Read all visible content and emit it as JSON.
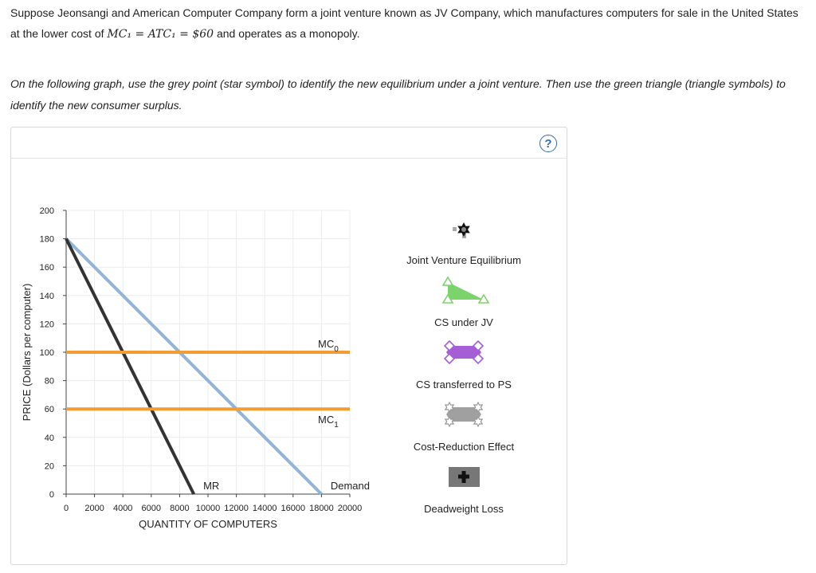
{
  "question": {
    "part1": "Suppose Jeonsangi and American Computer Company form a joint venture known as JV Company, which manufactures computers for sale in the United States at the lower cost of ",
    "math": "MC₁ = ATC₁ = $60",
    "part2": " and operates as a monopoly.",
    "instruction": "On the following graph, use the grey point (star symbol) to identify the new equilibrium under a joint venture. Then use the green triangle (triangle symbols) to identify the new consumer surplus."
  },
  "help": {
    "label": "?"
  },
  "chart_data": {
    "type": "line",
    "xlabel": "QUANTITY OF COMPUTERS",
    "ylabel": "PRICE (Dollars per computer)",
    "xlim": [
      0,
      20000
    ],
    "ylim": [
      0,
      200
    ],
    "x_ticks": [
      0,
      2000,
      4000,
      6000,
      8000,
      10000,
      12000,
      14000,
      16000,
      18000,
      20000
    ],
    "y_ticks": [
      0,
      20,
      40,
      60,
      80,
      100,
      120,
      140,
      160,
      180,
      200
    ],
    "grid": true,
    "series": [
      {
        "name": "Demand",
        "color": "#8fb6d6",
        "points": [
          [
            0,
            180
          ],
          [
            18000,
            0
          ]
        ]
      },
      {
        "name": "MR",
        "color": "#333333",
        "points": [
          [
            0,
            180
          ],
          [
            9000,
            0
          ]
        ]
      },
      {
        "name": "MC0",
        "label_main": "MC",
        "label_sub": "0",
        "color": "#f39c33",
        "points": [
          [
            0,
            100
          ],
          [
            20000,
            100
          ]
        ]
      },
      {
        "name": "MC1",
        "label_main": "MC",
        "label_sub": "1",
        "color": "#f39c33",
        "points": [
          [
            0,
            60
          ],
          [
            20000,
            60
          ]
        ]
      }
    ]
  },
  "palette": {
    "items": [
      {
        "label": "Joint Venture Equilibrium",
        "icon": "star-point-icon",
        "color": "#111111"
      },
      {
        "label": "CS under JV",
        "icon": "triangle-icon",
        "color": "#7dd36b"
      },
      {
        "label": "CS transferred to PS",
        "icon": "trapezoid-icon",
        "color": "#a55ed6"
      },
      {
        "label": "Cost-Reduction Effect",
        "icon": "rectangle-icon",
        "color": "#a0a0a0"
      },
      {
        "label": "Deadweight Loss",
        "icon": "plus-box-icon",
        "color": "#777777"
      }
    ]
  }
}
